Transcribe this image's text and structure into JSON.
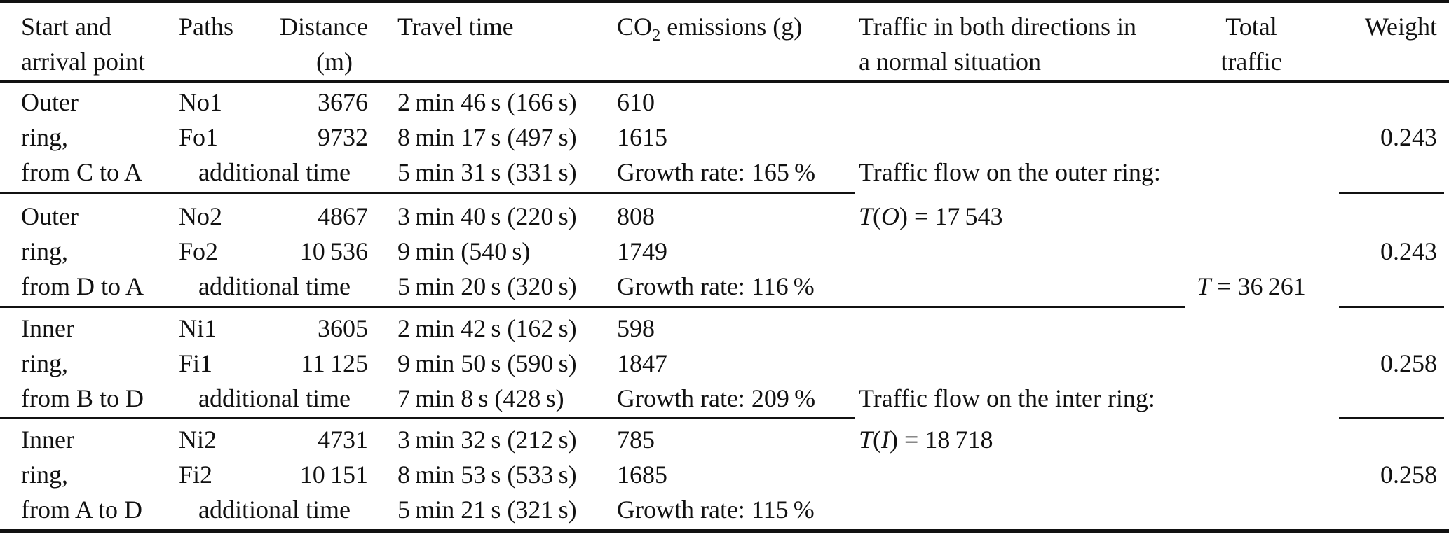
{
  "table": {
    "header": {
      "start": [
        "Start and",
        "arrival point"
      ],
      "paths": "Paths",
      "distance": "Distance",
      "distance_unit": "(m)",
      "travel_time": "Travel time",
      "co2_pre": "CO",
      "co2_sub": "2",
      "co2_post": " emissions (g)",
      "traffic": [
        "Traffic in both directions in",
        "a normal situation"
      ],
      "total": [
        "Total",
        "traffic"
      ],
      "weight": "Weight"
    },
    "blocks": [
      {
        "start": [
          "Outer",
          "ring,",
          "from C to A"
        ],
        "path1": "No1",
        "dist1": "3676",
        "time1": "2 min 46 s (166 s)",
        "co2_1": "610",
        "path2": "Fo1",
        "dist2": "9732",
        "time2": "8 min 17 s (497 s)",
        "co2_2": "1615",
        "additional_label": "additional time",
        "time3": "5 min 31 s (331 s)",
        "growth": "Growth rate: 165 %",
        "note": "Traffic flow on the outer ring:",
        "weight": "0.243"
      },
      {
        "start": [
          "Outer",
          "ring,",
          "from D to A"
        ],
        "path1": "No2",
        "dist1": "4867",
        "time1": "3 min 40 s (220 s)",
        "co2_1": "808",
        "path2": "Fo2",
        "dist2": "10 536",
        "time2": "9 min (540 s)",
        "co2_2": "1749",
        "additional_label": "additional time",
        "time3": "5 min 20 s (320 s)",
        "growth": "Growth rate: 116 %",
        "formula_var": "T",
        "formula_open": "(",
        "formula_arg": "O",
        "formula_rest": ") = 17 543",
        "weight": "0.243"
      },
      {
        "start": [
          "Inner",
          "ring,",
          "from B to D"
        ],
        "path1": "Ni1",
        "dist1": "3605",
        "time1": "2 min 42 s (162 s)",
        "co2_1": "598",
        "path2": "Fi1",
        "dist2": "11 125",
        "time2": "9 min 50 s (590 s)",
        "co2_2": "1847",
        "additional_label": "additional time",
        "time3": "7 min 8 s (428 s)",
        "growth": "Growth rate: 209 %",
        "note": "Traffic flow on the inter ring:",
        "weight": "0.258"
      },
      {
        "start": [
          "Inner",
          "ring,",
          "from A to D"
        ],
        "path1": "Ni2",
        "dist1": "4731",
        "time1": "3 min 32 s (212 s)",
        "co2_1": "785",
        "path2": "Fi2",
        "dist2": "10 151",
        "time2": "8 min 53 s (533 s)",
        "co2_2": "1685",
        "additional_label": "additional time",
        "time3": "5 min 21 s (321 s)",
        "growth": "Growth rate: 115 %",
        "formula_var": "T",
        "formula_open": "(",
        "formula_arg": "I",
        "formula_rest": ") = 18 718",
        "weight": "0.258"
      }
    ],
    "total_var": "T",
    "total_rest": " = 36 261",
    "colors": {
      "text": "#111111",
      "rule": "#111111",
      "background": "#ffffff"
    }
  }
}
